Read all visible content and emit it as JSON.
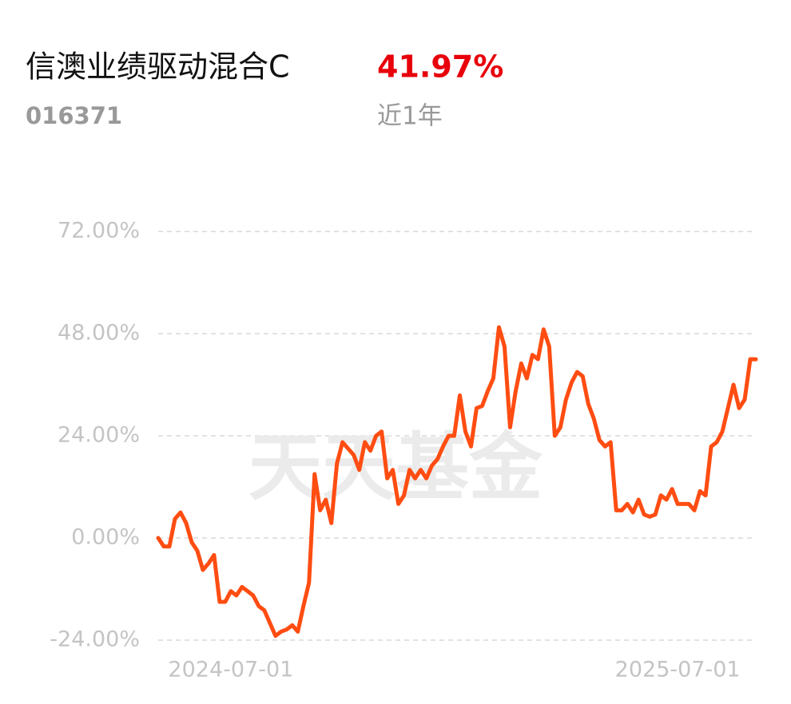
{
  "chart_data": {
    "type": "line",
    "title": "信澳业绩驱动混合C",
    "return": "41.97%",
    "code": "016371",
    "period": "近1年",
    "watermark": "天天基金",
    "categories": [
      null,
      null,
      null,
      null,
      null,
      null,
      null,
      null,
      null,
      null,
      null,
      null,
      null,
      "2024-07-01",
      null,
      null,
      null,
      null,
      null,
      null,
      null,
      null,
      null,
      null,
      null,
      null,
      null,
      null,
      null,
      null,
      null,
      null,
      null,
      null,
      null,
      null,
      null,
      null,
      null,
      null,
      null,
      null,
      null,
      null,
      null,
      null,
      null,
      null,
      null,
      null,
      null,
      null,
      null,
      null,
      null,
      null,
      null,
      null,
      null,
      null,
      null,
      null,
      null,
      null,
      null,
      null,
      null,
      null,
      null,
      null,
      null,
      null,
      null,
      null,
      null,
      null,
      null,
      null,
      null,
      null,
      null,
      null,
      null,
      null,
      null,
      null,
      null,
      null,
      null,
      null,
      null,
      null,
      null,
      "2025-07-01",
      null,
      null,
      null,
      null,
      null,
      null,
      null,
      null,
      null,
      null,
      null,
      null,
      null,
      null
    ],
    "series": [
      {
        "name": "信澳业绩驱动混合C",
        "color": "#ff4d12",
        "values": [
          0,
          -2,
          -2,
          4.5,
          6,
          3.5,
          -1,
          -3,
          -7.5,
          -6,
          -4,
          -15,
          -15,
          -12.5,
          -13.5,
          -11.5,
          -12.5,
          -13.5,
          -16,
          -17,
          -20,
          -23,
          -22,
          -21.5,
          -20.5,
          -22,
          -16,
          -10.5,
          15,
          6.5,
          9,
          3.5,
          17.5,
          22.5,
          21,
          19.5,
          16,
          22.5,
          20.5,
          24,
          25,
          14,
          16,
          8,
          10,
          16,
          14,
          16,
          14,
          17,
          18.5,
          21.5,
          24,
          24,
          33.5,
          25,
          21.5,
          30.5,
          31,
          34.5,
          37.5,
          49.5,
          45,
          26,
          34.5,
          41,
          37.5,
          43,
          42,
          49,
          45,
          24,
          26,
          32.5,
          36.5,
          39,
          38,
          31.5,
          28,
          23,
          21.5,
          22.5,
          6.5,
          6.5,
          8,
          6,
          9,
          5.5,
          5,
          5.5,
          10,
          9,
          11.5,
          8,
          8,
          8,
          6.5,
          11,
          10,
          21.5,
          22.5,
          25,
          30.5,
          36,
          30.5,
          32.5,
          42,
          41.97
        ]
      }
    ],
    "ylim": [
      -24,
      72
    ],
    "yticks": [
      {
        "value": -24,
        "label": "-24.00%"
      },
      {
        "value": 0,
        "label": "0.00%"
      },
      {
        "value": 24,
        "label": "24.00%"
      },
      {
        "value": 48,
        "label": "48.00%"
      },
      {
        "value": 72,
        "label": "72.00%"
      }
    ],
    "grid": true
  }
}
